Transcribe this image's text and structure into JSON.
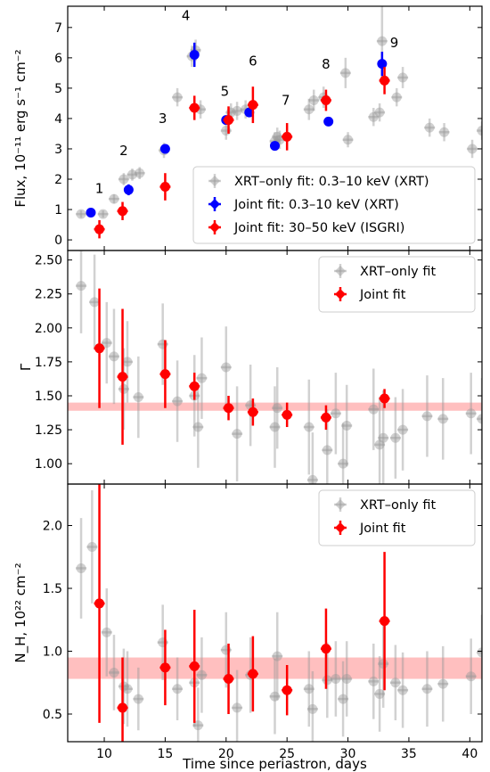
{
  "chart_data": [
    {
      "type": "scatter",
      "panel": "flux",
      "ylabel": "Flux, 10⁻¹¹ erg s⁻¹ cm⁻²",
      "xlim": [
        7,
        41
      ],
      "ylim": [
        -0.35,
        7.7
      ],
      "yticks": [
        0,
        1,
        2,
        3,
        4,
        5,
        6,
        7
      ],
      "legend_location": "lower-right",
      "series": [
        {
          "name": "XRT–only fit: 0.3–10 keV (XRT)",
          "color": "#999999",
          "points": [
            {
              "x": 8.1,
              "y": 0.85,
              "err": 0.12
            },
            {
              "x": 9.9,
              "y": 0.85,
              "err": 0.12
            },
            {
              "x": 10.8,
              "y": 1.35,
              "err": 0.15
            },
            {
              "x": 11.6,
              "y": 2.0,
              "err": 0.2
            },
            {
              "x": 12.3,
              "y": 2.15,
              "err": 0.2
            },
            {
              "x": 12.9,
              "y": 2.2,
              "err": 0.2
            },
            {
              "x": 14.9,
              "y": 2.95,
              "err": 0.25
            },
            {
              "x": 16.0,
              "y": 4.7,
              "err": 0.3
            },
            {
              "x": 17.2,
              "y": 6.05,
              "err": 0.35
            },
            {
              "x": 17.5,
              "y": 6.25,
              "err": 0.35
            },
            {
              "x": 17.9,
              "y": 4.3,
              "err": 0.3
            },
            {
              "x": 20.0,
              "y": 3.6,
              "err": 0.3
            },
            {
              "x": 20.4,
              "y": 4.2,
              "err": 0.3
            },
            {
              "x": 20.9,
              "y": 4.25,
              "err": 0.3
            },
            {
              "x": 21.6,
              "y": 4.3,
              "err": 0.3
            },
            {
              "x": 24.0,
              "y": 3.25,
              "err": 0.3
            },
            {
              "x": 24.2,
              "y": 3.4,
              "err": 0.3
            },
            {
              "x": 24.4,
              "y": 3.3,
              "err": 0.3
            },
            {
              "x": 26.8,
              "y": 4.3,
              "err": 0.35
            },
            {
              "x": 27.2,
              "y": 4.6,
              "err": 0.35
            },
            {
              "x": 28.0,
              "y": 4.7,
              "err": 0.35
            },
            {
              "x": 29.8,
              "y": 5.5,
              "err": 0.5
            },
            {
              "x": 30.0,
              "y": 3.3,
              "err": 0.25
            },
            {
              "x": 32.1,
              "y": 4.05,
              "err": 0.3
            },
            {
              "x": 32.6,
              "y": 4.2,
              "err": 0.3
            },
            {
              "x": 32.8,
              "y": 6.55,
              "err": 1.2
            },
            {
              "x": 34.0,
              "y": 4.7,
              "err": 0.3
            },
            {
              "x": 34.5,
              "y": 5.35,
              "err": 0.35
            },
            {
              "x": 36.7,
              "y": 3.7,
              "err": 0.3
            },
            {
              "x": 37.9,
              "y": 3.55,
              "err": 0.3
            },
            {
              "x": 40.2,
              "y": 3.0,
              "err": 0.3
            },
            {
              "x": 41.0,
              "y": 3.6,
              "err": 0.3
            }
          ]
        },
        {
          "name": "Joint fit: 0.3–10 keV (XRT)",
          "color": "#0000ff",
          "points": [
            {
              "x": 8.9,
              "y": 0.9,
              "err": 0.1
            },
            {
              "x": 12.0,
              "y": 1.65,
              "err": 0.18
            },
            {
              "x": 15.0,
              "y": 3.0,
              "err": 0.15
            },
            {
              "x": 17.4,
              "y": 6.1,
              "err": 0.4
            },
            {
              "x": 20.0,
              "y": 3.95,
              "err": 0.12
            },
            {
              "x": 21.9,
              "y": 4.2,
              "err": 0.15
            },
            {
              "x": 24.0,
              "y": 3.1,
              "err": 0.12
            },
            {
              "x": 28.4,
              "y": 3.9,
              "err": 0.15
            },
            {
              "x": 32.8,
              "y": 5.8,
              "err": 0.4
            }
          ]
        },
        {
          "name": "Joint fit: 30–50 keV (ISGRI)",
          "color": "#ff0000",
          "points": [
            {
              "x": 9.6,
              "y": 0.35,
              "err": 0.3
            },
            {
              "x": 11.5,
              "y": 0.95,
              "err": 0.3
            },
            {
              "x": 15.0,
              "y": 1.75,
              "err": 0.45
            },
            {
              "x": 17.4,
              "y": 4.35,
              "err": 0.4
            },
            {
              "x": 20.2,
              "y": 3.95,
              "err": 0.45
            },
            {
              "x": 22.2,
              "y": 4.45,
              "err": 0.6
            },
            {
              "x": 25.0,
              "y": 3.4,
              "err": 0.45
            },
            {
              "x": 28.2,
              "y": 4.6,
              "err": 0.35
            },
            {
              "x": 33.0,
              "y": 5.25,
              "err": 0.45
            }
          ]
        }
      ],
      "annotations": [
        {
          "text": "1",
          "x": 9.6,
          "y": 1.55
        },
        {
          "text": "2",
          "x": 11.6,
          "y": 2.8
        },
        {
          "text": "3",
          "x": 14.8,
          "y": 3.85
        },
        {
          "text": "4",
          "x": 16.7,
          "y": 7.25
        },
        {
          "text": "5",
          "x": 19.9,
          "y": 4.75
        },
        {
          "text": "6",
          "x": 22.2,
          "y": 5.75
        },
        {
          "text": "7",
          "x": 24.9,
          "y": 4.45
        },
        {
          "text": "8",
          "x": 28.2,
          "y": 5.65
        },
        {
          "text": "9",
          "x": 33.8,
          "y": 6.35
        }
      ]
    },
    {
      "type": "scatter",
      "panel": "gamma",
      "ylabel": "Γ",
      "xlim": [
        7,
        41
      ],
      "ylim": [
        0.85,
        2.57
      ],
      "yticks": [
        1.0,
        1.25,
        1.5,
        1.75,
        2.0,
        2.25,
        2.5
      ],
      "ytick_labels": [
        "1.00",
        "1.25",
        "1.50",
        "1.75",
        "2.00",
        "2.25",
        "2.50"
      ],
      "legend_location": "top-right",
      "band": {
        "y0": 1.39,
        "y1": 1.45,
        "color": "#ffaaaa"
      },
      "series": [
        {
          "name": "XRT–only fit",
          "color": "#999999",
          "points": [
            {
              "x": 8.1,
              "y": 2.31,
              "err": 0.35
            },
            {
              "x": 9.2,
              "y": 2.19,
              "err": 0.35
            },
            {
              "x": 10.2,
              "y": 1.89,
              "err": 0.3
            },
            {
              "x": 10.8,
              "y": 1.79,
              "err": 0.35
            },
            {
              "x": 11.6,
              "y": 1.55,
              "err": 0.3
            },
            {
              "x": 11.9,
              "y": 1.75,
              "err": 0.3
            },
            {
              "x": 12.8,
              "y": 1.49,
              "err": 0.3
            },
            {
              "x": 14.8,
              "y": 1.88,
              "err": 0.3
            },
            {
              "x": 16.0,
              "y": 1.46,
              "err": 0.3
            },
            {
              "x": 17.4,
              "y": 1.5,
              "err": 0.3
            },
            {
              "x": 17.7,
              "y": 1.27,
              "err": 0.3
            },
            {
              "x": 18.0,
              "y": 1.63,
              "err": 0.3
            },
            {
              "x": 20.0,
              "y": 1.71,
              "err": 0.3
            },
            {
              "x": 20.9,
              "y": 1.22,
              "err": 0.35
            },
            {
              "x": 22.0,
              "y": 1.43,
              "err": 0.3
            },
            {
              "x": 24.0,
              "y": 1.27,
              "err": 0.3
            },
            {
              "x": 24.2,
              "y": 1.41,
              "err": 0.3
            },
            {
              "x": 26.8,
              "y": 1.27,
              "err": 0.35
            },
            {
              "x": 27.1,
              "y": 0.88,
              "err": 0.35
            },
            {
              "x": 28.3,
              "y": 1.1,
              "err": 0.3
            },
            {
              "x": 29.0,
              "y": 1.37,
              "err": 0.3
            },
            {
              "x": 29.6,
              "y": 1.0,
              "err": 0.3
            },
            {
              "x": 29.9,
              "y": 1.28,
              "err": 0.3
            },
            {
              "x": 32.1,
              "y": 1.4,
              "err": 0.3
            },
            {
              "x": 32.6,
              "y": 1.14,
              "err": 0.35
            },
            {
              "x": 32.9,
              "y": 1.19,
              "err": 0.35
            },
            {
              "x": 33.9,
              "y": 1.19,
              "err": 0.3
            },
            {
              "x": 34.5,
              "y": 1.25,
              "err": 0.3
            },
            {
              "x": 36.5,
              "y": 1.35,
              "err": 0.3
            },
            {
              "x": 37.8,
              "y": 1.33,
              "err": 0.3
            },
            {
              "x": 40.1,
              "y": 1.37,
              "err": 0.3
            },
            {
              "x": 41.0,
              "y": 1.33,
              "err": 0.3
            }
          ]
        },
        {
          "name": "Joint fit",
          "color": "#ff0000",
          "points": [
            {
              "x": 9.6,
              "y": 1.85,
              "err": 0.44
            },
            {
              "x": 11.5,
              "y": 1.64,
              "err": 0.5
            },
            {
              "x": 15.0,
              "y": 1.66,
              "err": 0.25
            },
            {
              "x": 17.4,
              "y": 1.57,
              "err": 0.1
            },
            {
              "x": 20.2,
              "y": 1.41,
              "err": 0.09
            },
            {
              "x": 22.2,
              "y": 1.38,
              "err": 0.1
            },
            {
              "x": 25.0,
              "y": 1.36,
              "err": 0.09
            },
            {
              "x": 28.2,
              "y": 1.34,
              "err": 0.09
            },
            {
              "x": 33.0,
              "y": 1.48,
              "err": 0.07
            }
          ]
        }
      ]
    },
    {
      "type": "scatter",
      "panel": "nh",
      "ylabel": "N_H, 10²² cm⁻²",
      "xlabel": "Time since periastron, days",
      "xlim": [
        7,
        41
      ],
      "ylim": [
        0.28,
        2.33
      ],
      "xticks": [
        10,
        15,
        20,
        25,
        30,
        35,
        40
      ],
      "yticks": [
        0.5,
        1.0,
        1.5,
        2.0
      ],
      "ytick_labels": [
        "0.5",
        "1.0",
        "1.5",
        "2.0"
      ],
      "legend_location": "top-right",
      "band": {
        "y0": 0.78,
        "y1": 0.95,
        "color": "#ffaaaa"
      },
      "series": [
        {
          "name": "XRT–only fit",
          "color": "#999999",
          "points": [
            {
              "x": 8.1,
              "y": 1.66,
              "err": 0.4
            },
            {
              "x": 9.0,
              "y": 1.83,
              "err": 0.45
            },
            {
              "x": 10.2,
              "y": 1.15,
              "err": 0.35
            },
            {
              "x": 10.8,
              "y": 0.83,
              "err": 0.3
            },
            {
              "x": 11.6,
              "y": 0.72,
              "err": 0.3
            },
            {
              "x": 11.9,
              "y": 0.7,
              "err": 0.3
            },
            {
              "x": 12.8,
              "y": 0.62,
              "err": 0.25
            },
            {
              "x": 14.8,
              "y": 1.07,
              "err": 0.3
            },
            {
              "x": 16.0,
              "y": 0.7,
              "err": 0.25
            },
            {
              "x": 17.4,
              "y": 0.75,
              "err": 0.35
            },
            {
              "x": 17.7,
              "y": 0.41,
              "err": 0.3
            },
            {
              "x": 18.0,
              "y": 0.81,
              "err": 0.3
            },
            {
              "x": 20.0,
              "y": 1.01,
              "err": 0.3
            },
            {
              "x": 20.9,
              "y": 0.55,
              "err": 0.3
            },
            {
              "x": 22.0,
              "y": 0.81,
              "err": 0.3
            },
            {
              "x": 24.0,
              "y": 0.64,
              "err": 0.3
            },
            {
              "x": 24.2,
              "y": 0.96,
              "err": 0.35
            },
            {
              "x": 26.8,
              "y": 0.7,
              "err": 0.3
            },
            {
              "x": 27.1,
              "y": 0.54,
              "err": 0.3
            },
            {
              "x": 28.3,
              "y": 0.77,
              "err": 0.3
            },
            {
              "x": 29.0,
              "y": 0.78,
              "err": 0.3
            },
            {
              "x": 29.6,
              "y": 0.62,
              "err": 0.3
            },
            {
              "x": 29.9,
              "y": 0.78,
              "err": 0.3
            },
            {
              "x": 32.1,
              "y": 0.76,
              "err": 0.3
            },
            {
              "x": 32.6,
              "y": 0.66,
              "err": 0.3
            },
            {
              "x": 32.9,
              "y": 0.9,
              "err": 0.35
            },
            {
              "x": 33.9,
              "y": 0.75,
              "err": 0.3
            },
            {
              "x": 34.5,
              "y": 0.69,
              "err": 0.3
            },
            {
              "x": 36.5,
              "y": 0.7,
              "err": 0.3
            },
            {
              "x": 37.8,
              "y": 0.74,
              "err": 0.3
            },
            {
              "x": 40.1,
              "y": 0.8,
              "err": 0.3
            },
            {
              "x": 41.0,
              "y": 0.99,
              "err": 0.3
            }
          ]
        },
        {
          "name": "Joint fit",
          "color": "#ff0000",
          "points": [
            {
              "x": 9.6,
              "y": 1.38,
              "err": 0.95
            },
            {
              "x": 11.5,
              "y": 0.55,
              "err": 0.4
            },
            {
              "x": 15.0,
              "y": 0.87,
              "err": 0.3
            },
            {
              "x": 17.4,
              "y": 0.88,
              "err": 0.45
            },
            {
              "x": 20.2,
              "y": 0.78,
              "err": 0.28
            },
            {
              "x": 22.2,
              "y": 0.82,
              "err": 0.3
            },
            {
              "x": 25.0,
              "y": 0.69,
              "err": 0.2
            },
            {
              "x": 28.2,
              "y": 1.02,
              "err": 0.32
            },
            {
              "x": 33.0,
              "y": 1.24,
              "err": 0.55
            }
          ]
        }
      ]
    }
  ]
}
